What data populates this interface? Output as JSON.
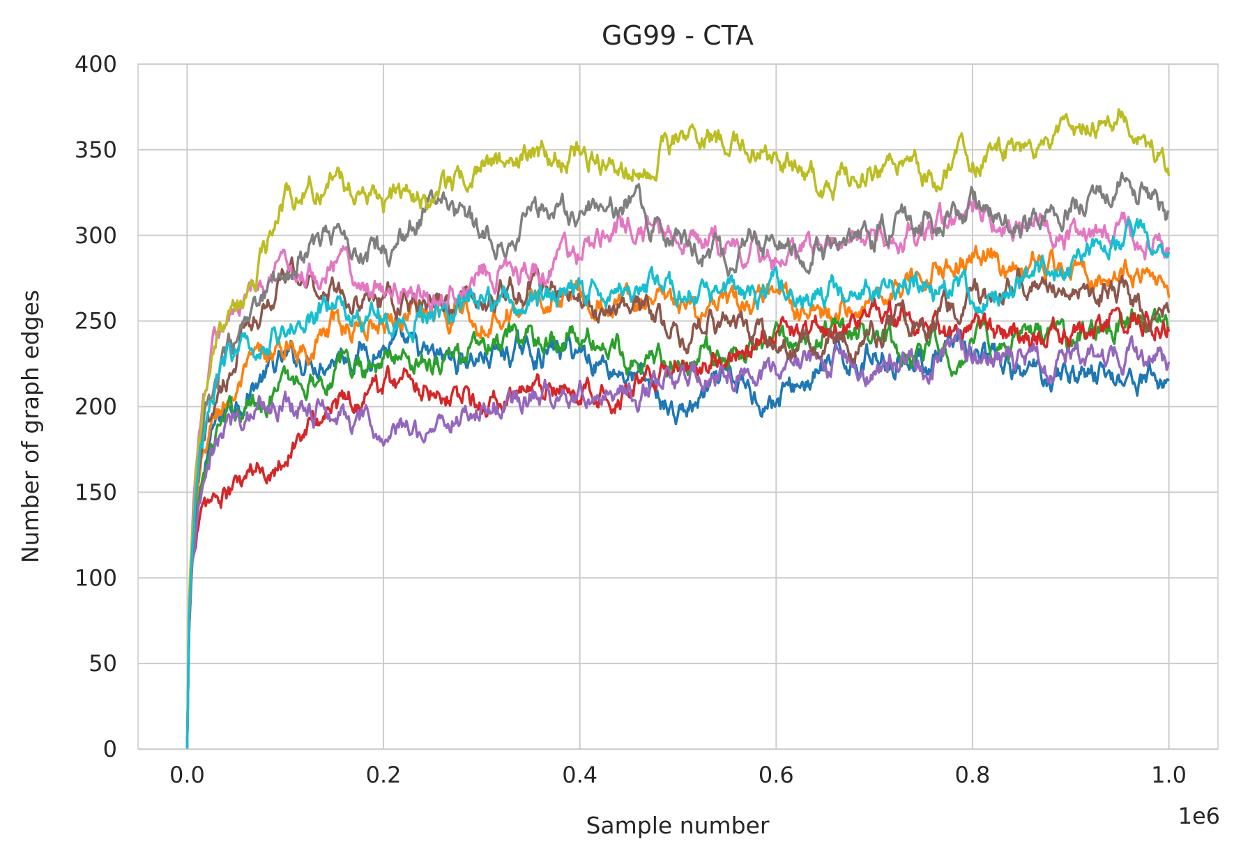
{
  "chart_data": {
    "type": "line",
    "title": "GG99 - CTA",
    "xlabel": "Sample number",
    "ylabel": "Number of graph edges",
    "x_offset_label": "1e6",
    "xlim": [
      -0.05,
      1.05
    ],
    "ylim": [
      0,
      400
    ],
    "x_ticks": [
      0.0,
      0.2,
      0.4,
      0.6,
      0.8,
      1.0
    ],
    "x_tick_labels": [
      "0.0",
      "0.2",
      "0.4",
      "0.6",
      "0.8",
      "1.0"
    ],
    "y_ticks": [
      0,
      50,
      100,
      150,
      200,
      250,
      300,
      350,
      400
    ],
    "y_tick_labels": [
      "0",
      "50",
      "100",
      "150",
      "200",
      "250",
      "300",
      "350",
      "400"
    ],
    "grid": true,
    "legend": "none",
    "x": [
      0,
      0.002,
      0.005,
      0.01,
      0.02,
      0.03,
      0.05,
      0.07,
      0.1,
      0.15,
      0.2,
      0.25,
      0.3,
      0.35,
      0.4,
      0.45,
      0.5,
      0.55,
      0.6,
      0.65,
      0.7,
      0.75,
      0.8,
      0.85,
      0.9,
      0.95,
      1.0
    ],
    "series": [
      {
        "color": "#1f77b4",
        "values": [
          0,
          75,
          110,
          140,
          170,
          190,
          205,
          215,
          225,
          232,
          236,
          225,
          230,
          232,
          233,
          220,
          195,
          212,
          205,
          222,
          232,
          228,
          230,
          218,
          222,
          218,
          215
        ]
      },
      {
        "color": "#ff7f0e",
        "values": [
          0,
          78,
          112,
          143,
          175,
          195,
          210,
          222,
          232,
          245,
          252,
          260,
          255,
          262,
          268,
          262,
          255,
          255,
          260,
          252,
          265,
          280,
          288,
          282,
          278,
          282,
          270
        ]
      },
      {
        "color": "#2ca02c",
        "values": [
          0,
          70,
          105,
          135,
          165,
          185,
          195,
          205,
          212,
          222,
          228,
          230,
          232,
          238,
          242,
          232,
          225,
          232,
          238,
          242,
          240,
          228,
          235,
          240,
          238,
          250,
          245
        ]
      },
      {
        "color": "#d62728",
        "values": [
          0,
          70,
          105,
          130,
          140,
          145,
          150,
          160,
          175,
          200,
          215,
          215,
          200,
          205,
          205,
          215,
          225,
          230,
          250,
          245,
          255,
          245,
          240,
          242,
          238,
          250,
          252
        ]
      },
      {
        "color": "#9467bd",
        "values": [
          0,
          72,
          108,
          130,
          155,
          175,
          195,
          203,
          205,
          198,
          180,
          190,
          200,
          205,
          212,
          210,
          212,
          220,
          220,
          225,
          225,
          228,
          232,
          228,
          225,
          230,
          225
        ]
      },
      {
        "color": "#8c564b",
        "values": [
          0,
          75,
          115,
          150,
          180,
          205,
          230,
          255,
          275,
          270,
          262,
          260,
          262,
          270,
          262,
          255,
          248,
          250,
          232,
          232,
          245,
          252,
          262,
          275,
          275,
          268,
          250
        ]
      },
      {
        "color": "#e377c2",
        "values": [
          0,
          85,
          130,
          175,
          215,
          240,
          255,
          265,
          275,
          285,
          270,
          262,
          282,
          280,
          290,
          305,
          300,
          290,
          288,
          290,
          295,
          302,
          312,
          305,
          300,
          305,
          290
        ]
      },
      {
        "color": "#7f7f7f",
        "values": [
          0,
          80,
          120,
          160,
          195,
          215,
          235,
          250,
          280,
          300,
          288,
          320,
          300,
          312,
          318,
          322,
          295,
          290,
          295,
          292,
          300,
          310,
          318,
          305,
          318,
          332,
          310
        ]
      },
      {
        "color": "#bcbd22",
        "values": [
          0,
          85,
          130,
          170,
          210,
          235,
          255,
          275,
          320,
          335,
          320,
          325,
          340,
          345,
          350,
          340,
          355,
          352,
          345,
          325,
          340,
          335,
          345,
          350,
          358,
          378,
          340
        ]
      },
      {
        "color": "#17becf",
        "values": [
          0,
          75,
          118,
          155,
          190,
          215,
          230,
          238,
          245,
          258,
          252,
          252,
          258,
          262,
          268,
          270,
          265,
          270,
          268,
          265,
          268,
          270,
          268,
          270,
          285,
          300,
          292
        ]
      }
    ]
  }
}
